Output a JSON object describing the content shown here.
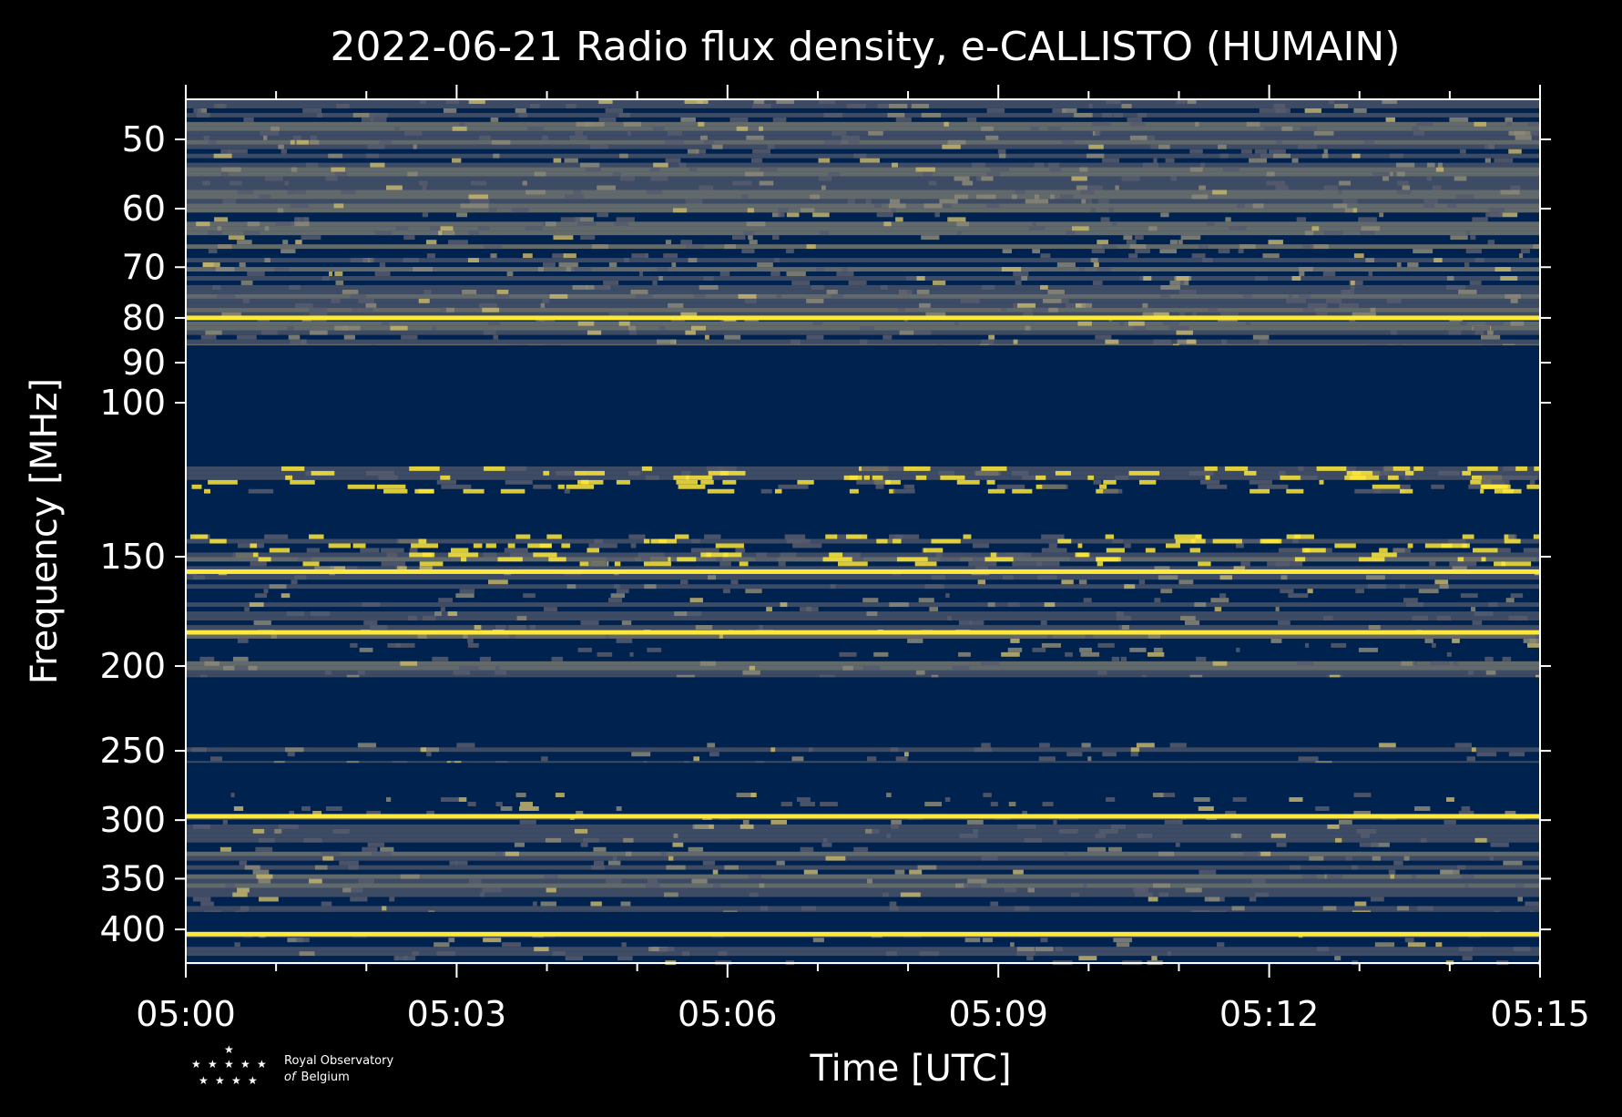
{
  "chart_data": {
    "type": "heatmap",
    "title": "2022-06-21 Radio flux density, e-CALLISTO (HUMAIN)",
    "xlabel": "Time [UTC]",
    "ylabel": "Frequency [MHz]",
    "x_tick_labels": [
      "05:00",
      "05:03",
      "05:06",
      "05:09",
      "05:12",
      "05:15"
    ],
    "x_range_minutes": [
      0,
      15
    ],
    "y_scale": "log",
    "y_range": [
      45,
      437
    ],
    "y_ticks": [
      50,
      60,
      70,
      80,
      90,
      100,
      150,
      200,
      250,
      300,
      350,
      400
    ],
    "y_tick_labels": [
      "50",
      "60",
      "70",
      "80",
      "90",
      "100",
      "150",
      "200",
      "250",
      "300",
      "350",
      "400"
    ],
    "colormap": [
      "#00224e",
      "#575c6d",
      "#8b8878",
      "#c4b56c",
      "#fee838"
    ],
    "masked_bands_mhz": [
      [
        86,
        118
      ],
      [
        127,
        141
      ],
      [
        206,
        243
      ],
      [
        258,
        276
      ],
      [
        382,
        402
      ]
    ],
    "bright_lines_mhz": [
      80,
      156,
      183,
      297,
      405
    ],
    "bursty_bands_mhz": [
      [
        118,
        127
      ],
      [
        141,
        153
      ]
    ]
  },
  "logo": {
    "line1": "Royal Observatory",
    "line2_prefix": "of",
    "line2_suffix": "Belgium"
  }
}
